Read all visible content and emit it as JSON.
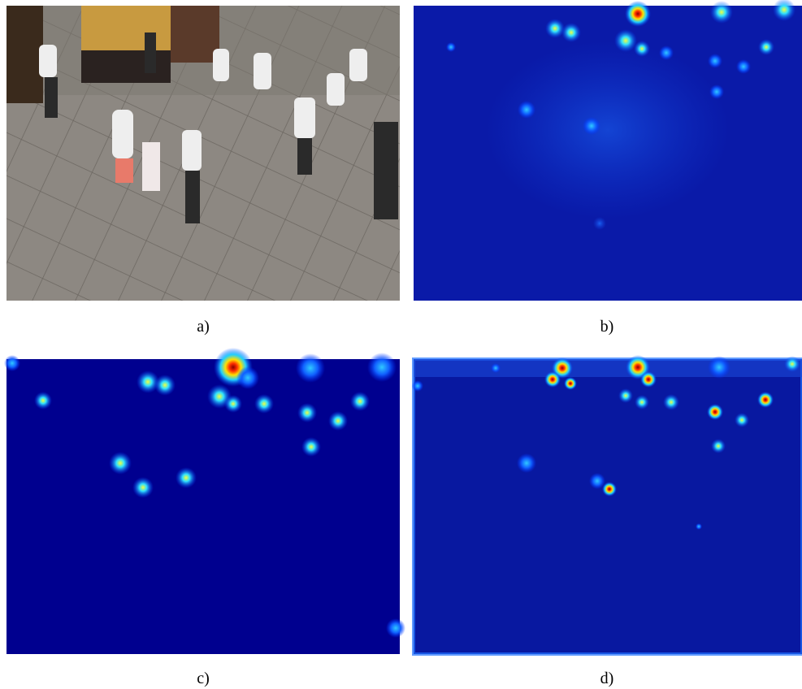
{
  "figure": {
    "panels": [
      {
        "caption": "a)"
      },
      {
        "caption": "b)"
      },
      {
        "caption": "c)"
      },
      {
        "caption": "d)"
      }
    ]
  }
}
